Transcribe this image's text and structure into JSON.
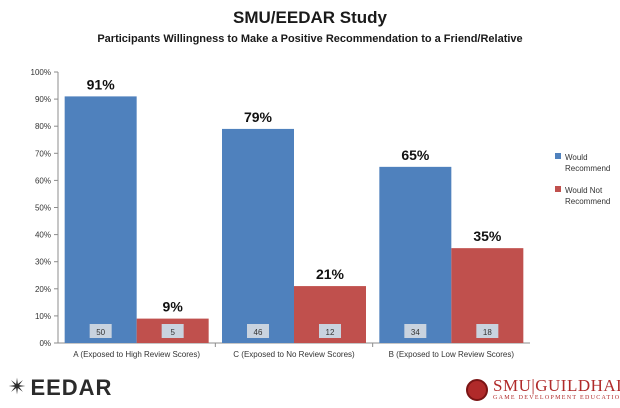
{
  "chart_data": {
    "type": "bar",
    "title": "SMU/EEDAR Study",
    "subtitle": "Participants Willingness to Make a Positive Recommendation to a Friend/Relative",
    "categories": [
      "A (Exposed to High Review Scores)",
      "C (Exposed to No Review Scores)",
      "B (Exposed to Low Review Scores)"
    ],
    "series": [
      {
        "name": "Would Recommend",
        "color": "#4f81bd",
        "values": [
          91,
          79,
          65
        ],
        "labels": [
          "91%",
          "79%",
          "65%"
        ],
        "counts": [
          "50",
          "46",
          "34"
        ]
      },
      {
        "name": "Would Not Recommend",
        "color": "#c0504d",
        "values": [
          9,
          21,
          35
        ],
        "labels": [
          "9%",
          "21%",
          "35%"
        ],
        "counts": [
          "5",
          "12",
          "18"
        ]
      }
    ],
    "ylim": [
      0,
      100
    ],
    "yticks": [
      "0%",
      "10%",
      "20%",
      "30%",
      "40%",
      "50%",
      "60%",
      "70%",
      "80%",
      "90%",
      "100%"
    ],
    "xlabel": "",
    "ylabel": "",
    "grid": false,
    "legend": "right",
    "legend_lines": [
      [
        "Would",
        "Recommend"
      ],
      [
        "Would Not",
        "Recommend"
      ]
    ]
  },
  "logos": {
    "eedar": "EEDAR",
    "smu_guildhall": "SMU|GUILDHALL",
    "guildhall_sub": "GAME DEVELOPMENT EDUCATION"
  }
}
